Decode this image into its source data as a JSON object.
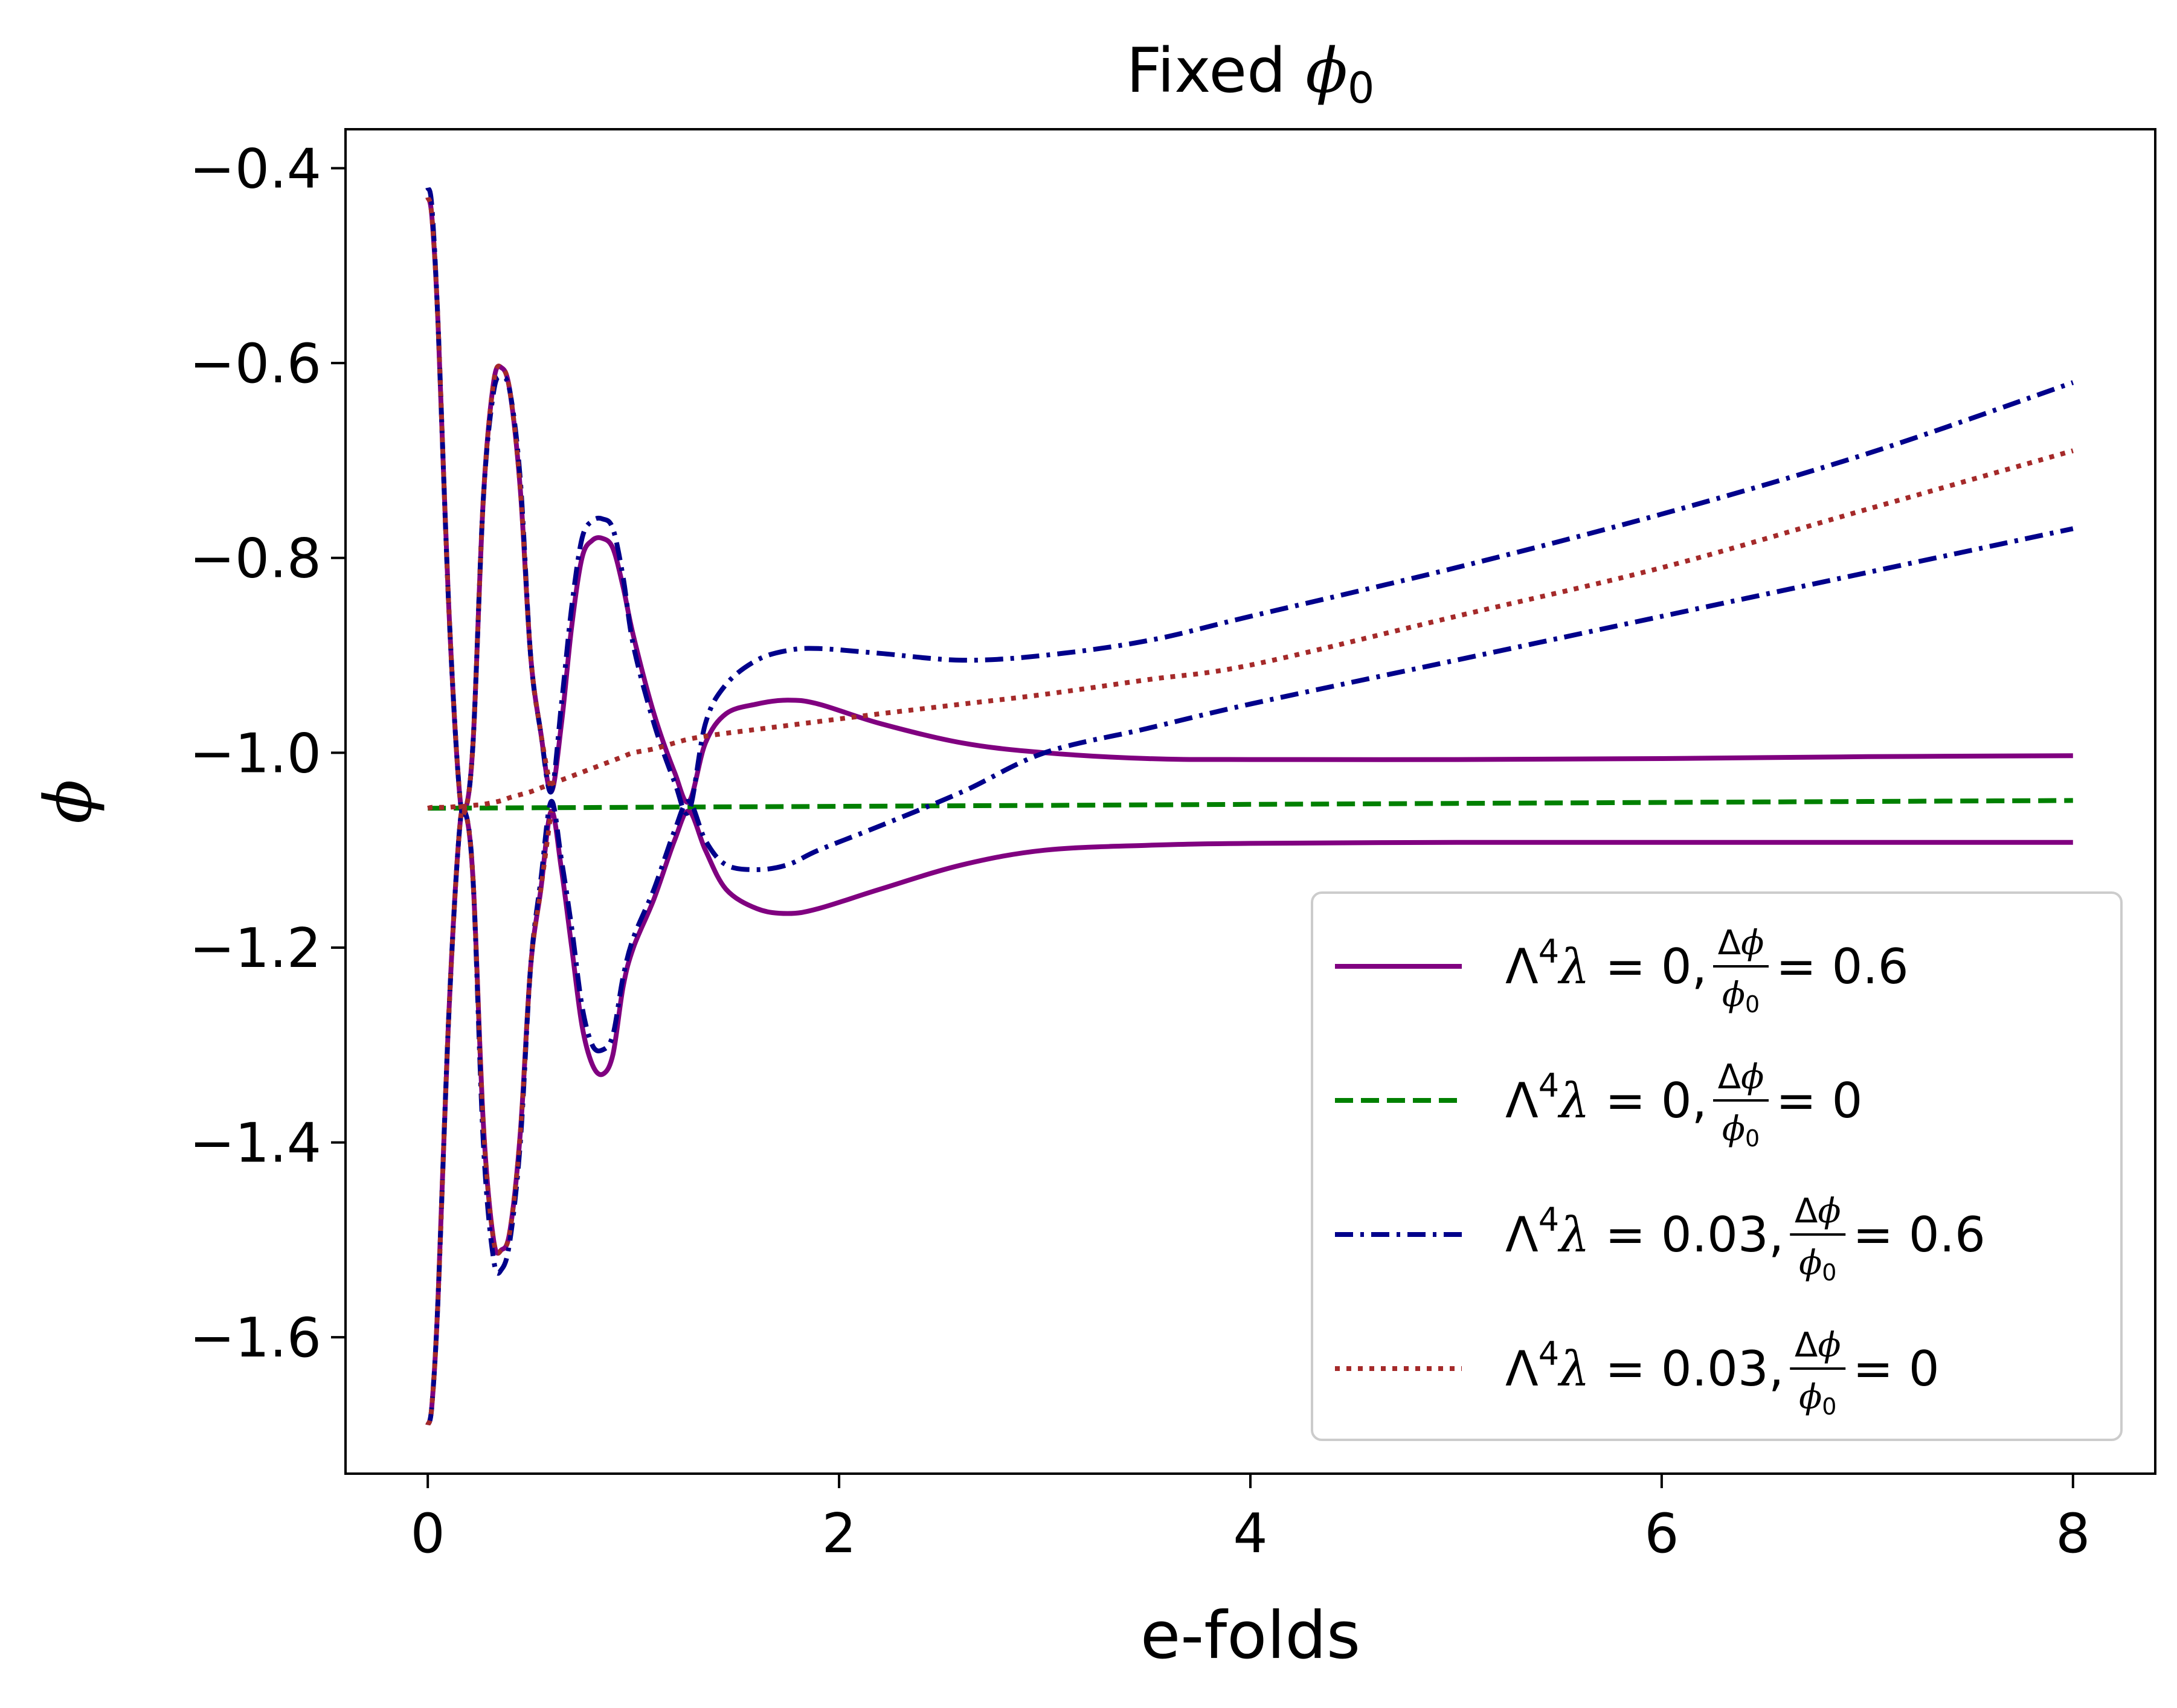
{
  "chart_data": {
    "type": "line",
    "title": "Fixed ϕ₀",
    "title_parts": {
      "main": "Fixed ",
      "symbol": "ϕ",
      "sub": "0"
    },
    "xlabel": "e-folds",
    "ylabel": "ϕ",
    "xlim": [
      -0.4,
      8.4
    ],
    "ylim": [
      -1.74,
      -0.36
    ],
    "xticks": [
      0,
      2,
      4,
      6,
      8
    ],
    "xtick_labels": [
      "0",
      "2",
      "4",
      "6",
      "8"
    ],
    "yticks": [
      -1.6,
      -1.4,
      -1.2,
      -1.0,
      -0.8,
      -0.6,
      -0.4
    ],
    "ytick_labels": [
      "−1.6",
      "−1.4",
      "−1.2",
      "−1.0",
      "−0.8",
      "−0.6",
      "−0.4"
    ],
    "grid": false,
    "legend_position": "lower-right",
    "legend": [
      {
        "lam": "0",
        "ratio": "0.6",
        "color": "#800080",
        "style": "solid"
      },
      {
        "lam": "0",
        "ratio": "0",
        "color": "#008000",
        "style": "dashed"
      },
      {
        "lam": "0.03",
        "ratio": "0.6",
        "color": "#00008b",
        "style": "dashdot"
      },
      {
        "lam": "0.03",
        "ratio": "0",
        "color": "#a52a2a",
        "style": "dotted"
      }
    ],
    "series": [
      {
        "color": "#800080",
        "style": "solid",
        "group": 0,
        "x": [
          0,
          0.02,
          0.05,
          0.1,
          0.15,
          0.18,
          0.22,
          0.27,
          0.32,
          0.36,
          0.4,
          0.45,
          0.5,
          0.55,
          0.6,
          0.65,
          0.7,
          0.75,
          0.8,
          0.85,
          0.9,
          0.95,
          1.0,
          1.1,
          1.2,
          1.27,
          1.35,
          1.45,
          1.6,
          1.75,
          1.9,
          2.2,
          2.6,
          3.0,
          3.5,
          4.0,
          5.0,
          6.0,
          7.0,
          8.0
        ],
        "y": [
          -0.43,
          -0.45,
          -0.56,
          -0.84,
          -1.03,
          -1.06,
          -0.99,
          -0.74,
          -0.62,
          -0.605,
          -0.63,
          -0.73,
          -0.9,
          -0.98,
          -1.04,
          -0.97,
          -0.87,
          -0.8,
          -0.782,
          -0.78,
          -0.79,
          -0.83,
          -0.88,
          -0.96,
          -1.02,
          -1.05,
          -0.99,
          -0.96,
          -0.95,
          -0.946,
          -0.95,
          -0.97,
          -0.99,
          -1.0,
          -1.006,
          -1.007,
          -1.007,
          -1.006,
          -1.004,
          -1.003
        ]
      },
      {
        "color": "#800080",
        "style": "solid",
        "group": 0,
        "x": [
          0,
          0.02,
          0.05,
          0.1,
          0.15,
          0.18,
          0.22,
          0.27,
          0.32,
          0.36,
          0.4,
          0.45,
          0.5,
          0.55,
          0.6,
          0.65,
          0.7,
          0.75,
          0.8,
          0.85,
          0.9,
          0.95,
          1.0,
          1.1,
          1.2,
          1.27,
          1.35,
          1.45,
          1.6,
          1.75,
          1.9,
          2.2,
          2.6,
          3.0,
          3.5,
          4.0,
          5.0,
          6.0,
          7.0,
          8.0
        ],
        "y": [
          -1.69,
          -1.67,
          -1.56,
          -1.28,
          -1.09,
          -1.06,
          -1.13,
          -1.38,
          -1.5,
          -1.51,
          -1.49,
          -1.39,
          -1.22,
          -1.14,
          -1.06,
          -1.12,
          -1.2,
          -1.28,
          -1.32,
          -1.33,
          -1.31,
          -1.24,
          -1.2,
          -1.15,
          -1.09,
          -1.06,
          -1.1,
          -1.14,
          -1.16,
          -1.165,
          -1.16,
          -1.14,
          -1.115,
          -1.1,
          -1.095,
          -1.093,
          -1.092,
          -1.092,
          -1.092,
          -1.092
        ]
      },
      {
        "color": "#008000",
        "style": "dashed",
        "group": 1,
        "x": [
          0,
          1,
          2,
          3,
          4,
          5,
          6,
          7,
          8
        ],
        "y": [
          -1.057,
          -1.056,
          -1.055,
          -1.054,
          -1.053,
          -1.052,
          -1.051,
          -1.05,
          -1.049
        ]
      },
      {
        "color": "#00008b",
        "style": "dashdot",
        "group": 2,
        "x": [
          0,
          0.02,
          0.05,
          0.1,
          0.15,
          0.18,
          0.22,
          0.27,
          0.32,
          0.36,
          0.4,
          0.45,
          0.5,
          0.55,
          0.6,
          0.65,
          0.7,
          0.75,
          0.8,
          0.85,
          0.9,
          0.95,
          1.0,
          1.1,
          1.2,
          1.27,
          1.35,
          1.45,
          1.6,
          1.75,
          1.9,
          2.2,
          2.6,
          3.0,
          3.5,
          4.0,
          5.0,
          6.0,
          7.0,
          8.0
        ],
        "y": [
          -0.42,
          -0.44,
          -0.56,
          -0.84,
          -1.03,
          -1.06,
          -0.99,
          -0.74,
          -0.63,
          -0.615,
          -0.63,
          -0.72,
          -0.9,
          -0.98,
          -1.04,
          -0.95,
          -0.85,
          -0.78,
          -0.762,
          -0.76,
          -0.77,
          -0.82,
          -0.89,
          -0.97,
          -1.03,
          -1.06,
          -0.97,
          -0.93,
          -0.905,
          -0.895,
          -0.893,
          -0.898,
          -0.905,
          -0.9,
          -0.885,
          -0.86,
          -0.81,
          -0.755,
          -0.693,
          -0.62
        ]
      },
      {
        "color": "#00008b",
        "style": "dashdot",
        "group": 2,
        "x": [
          0,
          0.02,
          0.05,
          0.1,
          0.15,
          0.18,
          0.22,
          0.27,
          0.32,
          0.36,
          0.4,
          0.45,
          0.5,
          0.55,
          0.6,
          0.65,
          0.7,
          0.75,
          0.8,
          0.85,
          0.9,
          0.95,
          1.0,
          1.1,
          1.2,
          1.27,
          1.35,
          1.45,
          1.6,
          1.75,
          1.9,
          2.2,
          2.6,
          3.0,
          3.5,
          4.0,
          5.0,
          6.0,
          7.0,
          8.0
        ],
        "y": [
          -1.69,
          -1.67,
          -1.56,
          -1.28,
          -1.09,
          -1.06,
          -1.13,
          -1.4,
          -1.52,
          -1.53,
          -1.5,
          -1.4,
          -1.22,
          -1.13,
          -1.05,
          -1.11,
          -1.18,
          -1.26,
          -1.3,
          -1.305,
          -1.29,
          -1.23,
          -1.19,
          -1.14,
          -1.08,
          -1.05,
          -1.09,
          -1.115,
          -1.12,
          -1.115,
          -1.1,
          -1.075,
          -1.04,
          -1.0,
          -0.975,
          -0.95,
          -0.905,
          -0.86,
          -0.815,
          -0.77
        ]
      },
      {
        "color": "#a52a2a",
        "style": "dotted",
        "group": 3,
        "x": [
          0,
          0.02,
          0.05,
          0.1,
          0.15,
          0.18,
          0.22,
          0.27,
          0.32,
          0.36,
          0.4,
          0.45,
          0.5,
          0.55,
          0.6,
          0.65,
          0.7,
          0.75,
          0.8,
          0.85,
          0.9,
          0.95,
          1.0,
          1.1,
          1.2,
          1.27,
          1.35,
          1.45,
          1.6,
          1.75,
          1.9,
          2.2,
          2.6,
          3.0,
          3.5,
          4.0,
          5.0,
          6.0,
          7.0,
          8.0
        ],
        "y": [
          -1.057,
          -1.056,
          -1.056,
          -1.056,
          -1.055,
          -1.055,
          -1.054,
          -1.053,
          -1.051,
          -1.049,
          -1.046,
          -1.043,
          -1.04,
          -1.036,
          -1.032,
          -1.028,
          -1.024,
          -1.02,
          -1.016,
          -1.012,
          -1.008,
          -1.004,
          -1.0,
          -0.996,
          -0.99,
          -0.986,
          -0.983,
          -0.98,
          -0.976,
          -0.972,
          -0.968,
          -0.96,
          -0.95,
          -0.94,
          -0.925,
          -0.91,
          -0.86,
          -0.81,
          -0.75,
          -0.69
        ]
      },
      {
        "color": "#a52a2a",
        "style": "dotted",
        "group": 3,
        "x": [
          0,
          0.02,
          0.05,
          0.1,
          0.15,
          0.18,
          0.22,
          0.27,
          0.32,
          0.36,
          0.4,
          0.45,
          0.5,
          0.55,
          0.6
        ],
        "y": [
          -0.43,
          -0.45,
          -0.56,
          -0.84,
          -1.03,
          -1.06,
          -0.99,
          -0.74,
          -0.62,
          -0.605,
          -0.63,
          -0.73,
          -0.9,
          -0.98,
          -1.04
        ]
      },
      {
        "color": "#a52a2a",
        "style": "dotted",
        "group": 3,
        "x": [
          0,
          0.02,
          0.05,
          0.1,
          0.15,
          0.18,
          0.22,
          0.27,
          0.32,
          0.36,
          0.4,
          0.45,
          0.5,
          0.55,
          0.6
        ],
        "y": [
          -1.69,
          -1.67,
          -1.56,
          -1.28,
          -1.09,
          -1.06,
          -1.13,
          -1.38,
          -1.5,
          -1.51,
          -1.49,
          -1.39,
          -1.22,
          -1.14,
          -1.06
        ]
      }
    ]
  }
}
